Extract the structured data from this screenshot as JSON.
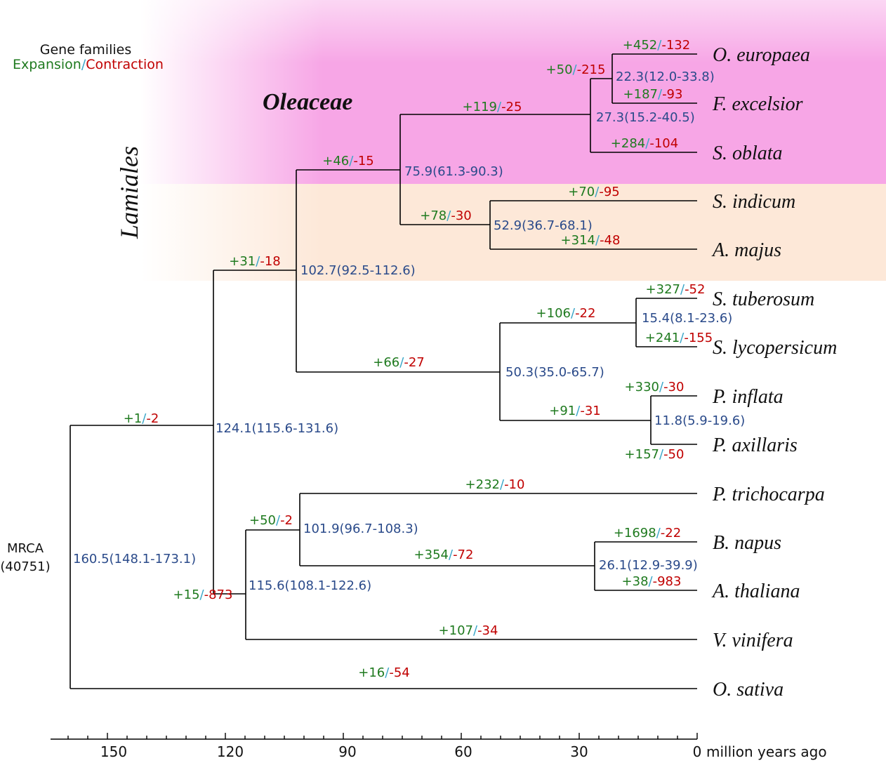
{
  "colors": {
    "expansion": "#1f7a1f",
    "contraction": "#c00000",
    "slash": "#3aa6c8",
    "age": "#2a4a8a",
    "branch": "#000000",
    "oleaceae_bg": "#f7a6e6",
    "lamiales_bg": "#fde8d8"
  },
  "legend": {
    "title": "Gene families",
    "expansion": "Expansion",
    "slash": "/",
    "contraction": "Contraction"
  },
  "clades": {
    "oleaceae": "Oleaceae",
    "lamiales": "Lamiales"
  },
  "root": {
    "label": "MRCA",
    "count": "(40751)"
  },
  "species": [
    "O. europaea",
    "F. excelsior",
    "S. oblata",
    "S. indicum",
    "A. majus",
    "S. tuberosum",
    "S. lycopersicum",
    "P. inflata",
    "P. axillaris",
    "P. trichocarpa",
    "B. napus",
    "A. thaliana",
    "V. vinifera",
    "O. sativa"
  ],
  "node_ages": [
    "160.5(148.1-173.1)",
    "124.1(115.6-131.6)",
    "115.6(108.1-122.6)",
    "102.7(92.5-112.6)",
    "101.9(96.7-108.3)",
    "75.9(61.3-90.3)",
    "52.9(36.7-68.1)",
    "50.3(35.0-65.7)",
    "27.3(15.2-40.5)",
    "26.1(12.9-39.9)",
    "22.3(12.0-33.8)",
    "15.4(8.1-23.6)",
    "11.8(5.9-19.6)"
  ],
  "gene_changes": [
    {
      "branch": "O. europaea",
      "exp": "+452",
      "con": "-132"
    },
    {
      "branch": "F. excelsior",
      "exp": "+187",
      "con": "-93"
    },
    {
      "branch": "S. oblata",
      "exp": "+284",
      "con": "-104"
    },
    {
      "branch": "S. indicum",
      "exp": "+70",
      "con": "-95"
    },
    {
      "branch": "A. majus",
      "exp": "+314",
      "con": "-48"
    },
    {
      "branch": "S. tuberosum",
      "exp": "+327",
      "con": "-52"
    },
    {
      "branch": "S. lycopersicum",
      "exp": "+241",
      "con": "-155"
    },
    {
      "branch": "P. inflata",
      "exp": "+330",
      "con": "-30"
    },
    {
      "branch": "P. axillaris",
      "exp": "+157",
      "con": "-50"
    },
    {
      "branch": "P. trichocarpa",
      "exp": "+232",
      "con": "-10"
    },
    {
      "branch": "B. napus",
      "exp": "+1698",
      "con": "-22"
    },
    {
      "branch": "A. thaliana",
      "exp": "+38",
      "con": "-983"
    },
    {
      "branch": "V. vinifera",
      "exp": "+107",
      "con": "-34"
    },
    {
      "branch": "O. sativa",
      "exp": "+16",
      "con": "-54"
    },
    {
      "branch": "Oleaceae crown",
      "exp": "+50",
      "con": "-215"
    },
    {
      "branch": "Oleaceae stem",
      "exp": "+119",
      "con": "-25"
    },
    {
      "branch": "Lamiales stem",
      "exp": "+46",
      "con": "-15"
    },
    {
      "branch": "Sesamum-Antirrhinum",
      "exp": "+78",
      "con": "-30"
    },
    {
      "branch": "Asterids",
      "exp": "+31",
      "con": "-18"
    },
    {
      "branch": "Solanaceae",
      "exp": "+66",
      "con": "-27"
    },
    {
      "branch": "Solanum",
      "exp": "+106",
      "con": "-22"
    },
    {
      "branch": "Petunia",
      "exp": "+91",
      "con": "-31"
    },
    {
      "branch": "Eudicots",
      "exp": "+1",
      "con": "-2"
    },
    {
      "branch": "Rosids",
      "exp": "+50",
      "con": "-2"
    },
    {
      "branch": "Core eudicots",
      "exp": "+15",
      "con": "-873"
    },
    {
      "branch": "Brassicaceae",
      "exp": "+354",
      "con": "-72"
    }
  ],
  "axis": {
    "ticks": [
      "150",
      "120",
      "90",
      "60",
      "30",
      "0"
    ],
    "unit": "million years ago"
  }
}
